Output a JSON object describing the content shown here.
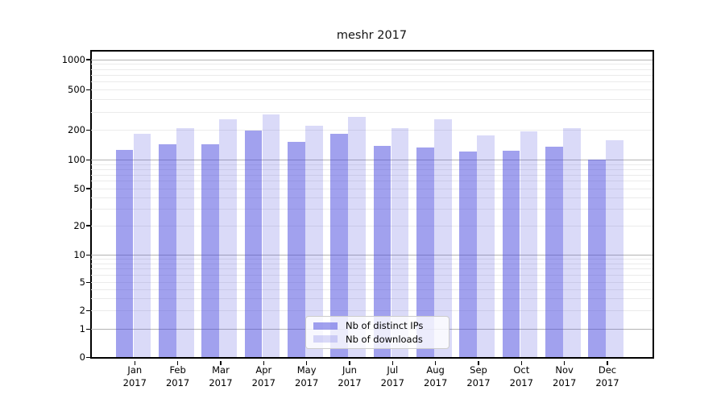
{
  "title": "meshr 2017",
  "legend": {
    "items": [
      {
        "label": "Nb of distinct IPs",
        "swatch_color": "rgba(68,68,221,0.5)"
      },
      {
        "label": "Nb of downloads",
        "swatch_color": "rgba(68,68,221,0.2)"
      }
    ],
    "position": "lower center"
  },
  "chart_data": {
    "type": "bar",
    "title": "meshr 2017",
    "categories": [
      "Jan",
      "Feb",
      "Mar",
      "Apr",
      "May",
      "Jun",
      "Jul",
      "Aug",
      "Sep",
      "Oct",
      "Nov",
      "Dec"
    ],
    "x_year_suffix": "2017",
    "series": [
      {
        "name": "Nb of distinct IPs",
        "fill": "rgba(68,68,221,0.5)",
        "base_color": "#4444dd",
        "values": [
          125,
          143,
          143,
          195,
          150,
          183,
          138,
          134,
          122,
          123,
          136,
          100
        ]
      },
      {
        "name": "Nb of downloads",
        "fill": "rgba(68,68,221,0.2)",
        "base_color": "#4444dd",
        "values": [
          182,
          207,
          254,
          282,
          220,
          270,
          207,
          253,
          175,
          193,
          208,
          156
        ]
      }
    ],
    "yscale": "symlog",
    "y_ticks": [
      0,
      1,
      2,
      5,
      10,
      20,
      50,
      100,
      200,
      500,
      1000
    ],
    "y_major_gridlines": [
      1,
      10,
      100,
      1000
    ],
    "y_minor_gridlines": [
      2,
      3,
      4,
      5,
      6,
      7,
      8,
      9,
      20,
      30,
      40,
      50,
      60,
      70,
      80,
      90,
      200,
      300,
      400,
      500,
      600,
      700,
      800,
      900
    ],
    "ylim": [
      0,
      1300
    ],
    "grid": "horizontal only",
    "xlabel": "",
    "ylabel": ""
  }
}
